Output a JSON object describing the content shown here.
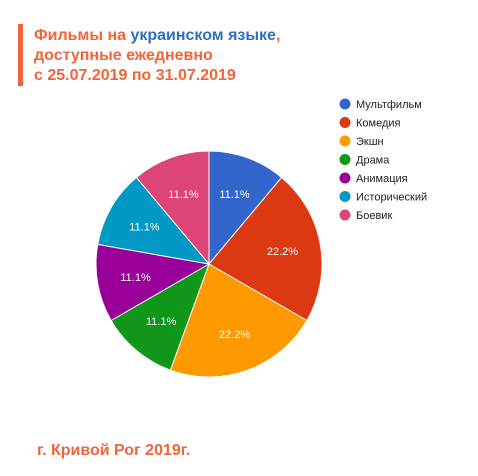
{
  "title": {
    "line1_prefix": "Фильмы на ",
    "line1_accent": "украинском языке",
    "line1_suffix": ",",
    "line2": "доступные ежедневно",
    "line3": "с 25.07.2019 по 31.07.2019"
  },
  "footer": "г. Кривой Рог 2019г.",
  "colors": {
    "title": "#f2643a",
    "title_accent": "#2f6fc0"
  },
  "chart_data": {
    "type": "pie",
    "categories": [
      "Мультфильм",
      "Комедия",
      "Экшн",
      "Драма",
      "Анимация",
      "Исторический",
      "Боевик"
    ],
    "values": [
      11.1,
      22.2,
      22.2,
      11.1,
      11.1,
      11.1,
      11.1
    ],
    "labels": [
      "11.1%",
      "22.2%",
      "22.2%",
      "11.1%",
      "11.1%",
      "11.1%",
      "11.1%"
    ],
    "colors": [
      "#3366cc",
      "#dc3912",
      "#ff9900",
      "#109618",
      "#990099",
      "#0099c6",
      "#dd4477"
    ],
    "legend_position": "right"
  }
}
